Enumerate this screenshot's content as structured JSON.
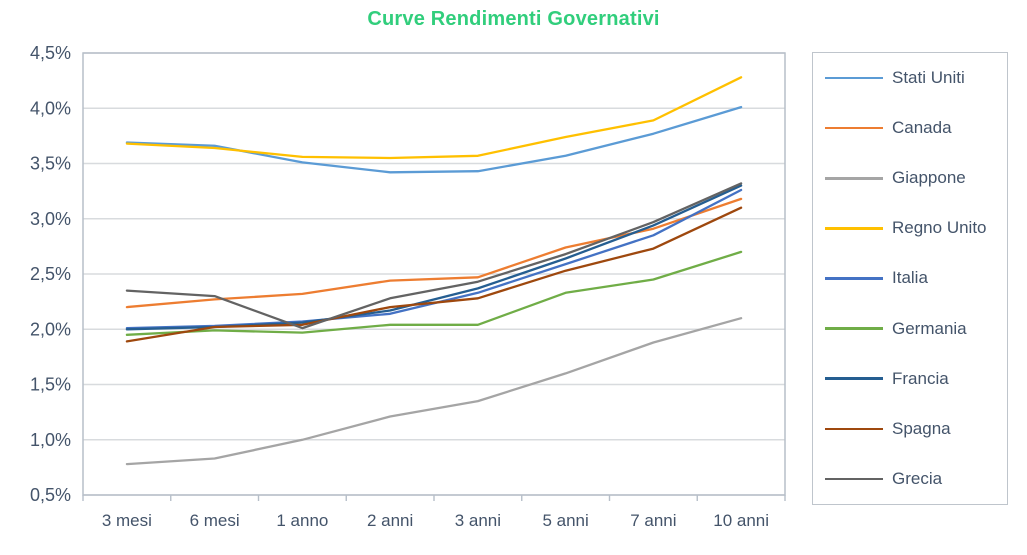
{
  "title": {
    "text": "Curve Rendimenti Governativi",
    "color": "#31CE7C"
  },
  "axis": {
    "text_color": "#44546A",
    "grid_color": "#D8DBDE",
    "border_color": "#B7BFC9",
    "yticks": [
      "4,5%",
      "4,0%",
      "3,5%",
      "3,0%",
      "2,5%",
      "2,0%",
      "1,5%",
      "1,0%",
      "0,5%"
    ]
  },
  "chart_data": {
    "type": "line",
    "title": "Curve Rendimenti Governativi",
    "xlabel": "",
    "ylabel": "",
    "ylim": [
      0.5,
      4.5
    ],
    "ytick_step": 0.5,
    "ytick_format": "percent-comma",
    "grid": true,
    "legend_position": "right",
    "categories": [
      "3 mesi",
      "6 mesi",
      "1 anno",
      "2 anni",
      "3 anni",
      "5 anni",
      "7 anni",
      "10 anni"
    ],
    "series": [
      {
        "name": "Stati Uniti",
        "color": "#5B9BD5",
        "values": [
          3.69,
          3.66,
          3.51,
          3.42,
          3.43,
          3.57,
          3.77,
          4.01
        ]
      },
      {
        "name": "Canada",
        "color": "#ED7D31",
        "values": [
          2.2,
          2.27,
          2.32,
          2.44,
          2.47,
          2.74,
          2.91,
          3.18
        ]
      },
      {
        "name": "Giappone",
        "color": "#A5A5A5",
        "values": [
          0.78,
          0.83,
          1.0,
          1.21,
          1.35,
          1.6,
          1.88,
          2.1
        ]
      },
      {
        "name": "Regno Unito",
        "color": "#FFC000",
        "values": [
          3.68,
          3.64,
          3.56,
          3.55,
          3.57,
          3.74,
          3.89,
          4.28
        ]
      },
      {
        "name": "Italia",
        "color": "#4472C4",
        "values": [
          2.01,
          2.03,
          2.07,
          2.14,
          2.33,
          2.59,
          2.85,
          3.26
        ]
      },
      {
        "name": "Germania",
        "color": "#70AD47",
        "values": [
          1.95,
          1.99,
          1.97,
          2.04,
          2.04,
          2.33,
          2.45,
          2.7
        ]
      },
      {
        "name": "Francia",
        "color": "#255E91",
        "values": [
          2.0,
          2.02,
          2.06,
          2.17,
          2.37,
          2.64,
          2.94,
          3.3
        ]
      },
      {
        "name": "Spagna",
        "color": "#9E480E",
        "values": [
          1.89,
          2.02,
          2.04,
          2.2,
          2.28,
          2.53,
          2.73,
          3.1
        ]
      },
      {
        "name": "Grecia",
        "color": "#636363",
        "values": [
          2.35,
          2.3,
          2.01,
          2.28,
          2.43,
          2.68,
          2.97,
          3.32
        ]
      }
    ]
  }
}
